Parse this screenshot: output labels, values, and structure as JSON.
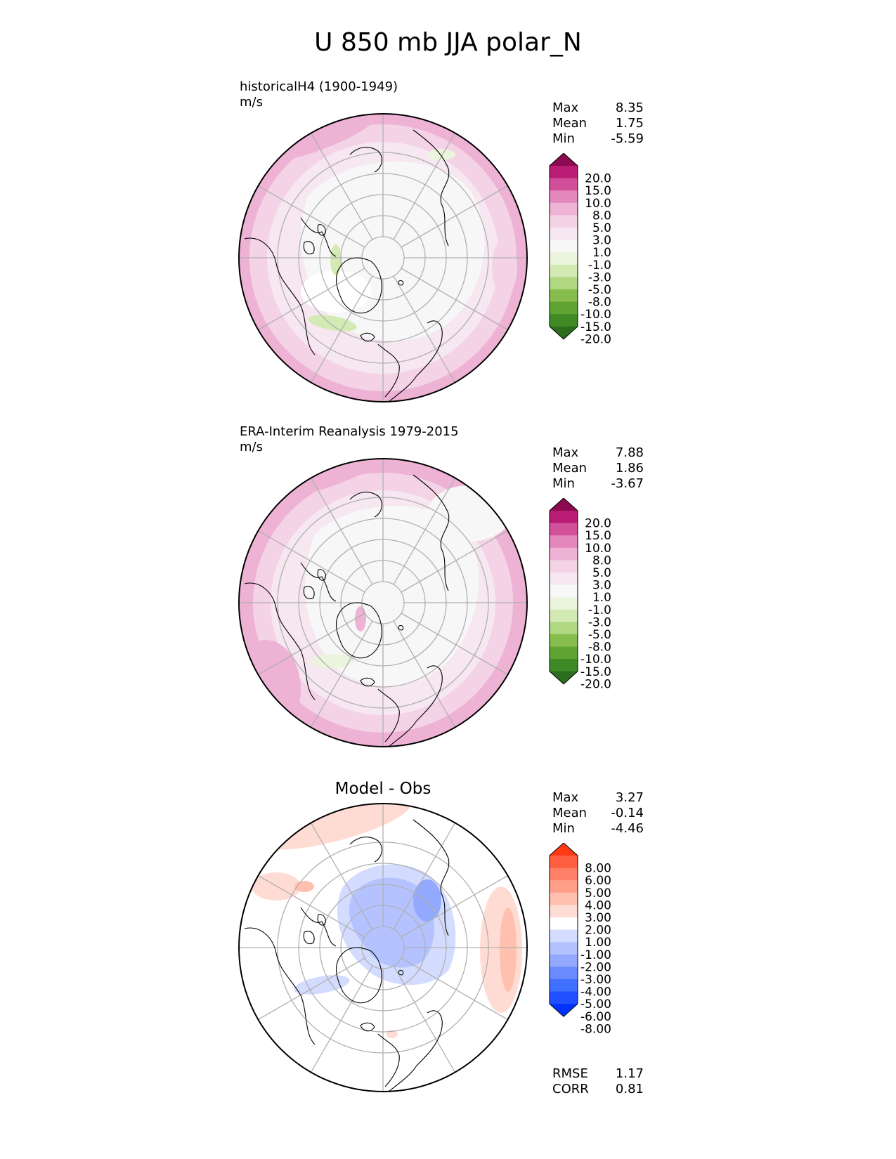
{
  "title": "U 850 mb JJA polar_N",
  "colors": {
    "model_obs_levels": [
      "#2c6e1e",
      "#3f8a25",
      "#5fa332",
      "#86bd4d",
      "#b0d881",
      "#d3eab4",
      "#ebf5dd",
      "#f7f7f7",
      "#f6e7f0",
      "#f4d3e6",
      "#eeb2d5",
      "#e387bd",
      "#d24f9a",
      "#b91c74",
      "#8c0a4f"
    ],
    "diff_levels": [
      "#0033ff",
      "#2050ff",
      "#4070ff",
      "#6a8aff",
      "#93a9ff",
      "#b4c3ff",
      "#d3dcff",
      "#ffffff",
      "#ffdcd3",
      "#ffc0b0",
      "#ff9f8a",
      "#ff8066",
      "#ff5f40",
      "#ff3a14"
    ],
    "coast": "#000000",
    "grid": "#b0b0b0"
  },
  "panels": [
    {
      "name": "model",
      "title": "historicalH4 (1900-1949)",
      "units": "m/s",
      "stats": [
        [
          "Max",
          "8.35"
        ],
        [
          "Mean",
          "1.75"
        ],
        [
          "Min",
          "-5.59"
        ]
      ],
      "colorbar_labels": [
        "20.0",
        "15.0",
        "10.0",
        "8.0",
        "5.0",
        "3.0",
        "1.0",
        "-1.0",
        "-3.0",
        "-5.0",
        "-8.0",
        "-10.0",
        "-15.0",
        "-20.0"
      ]
    },
    {
      "name": "obs",
      "title": "ERA-Interim Reanalysis 1979-2015",
      "units": "m/s",
      "stats": [
        [
          "Max",
          "7.88"
        ],
        [
          "Mean",
          "1.86"
        ],
        [
          "Min",
          "-3.67"
        ]
      ],
      "colorbar_labels": [
        "20.0",
        "15.0",
        "10.0",
        "8.0",
        "5.0",
        "3.0",
        "1.0",
        "-1.0",
        "-3.0",
        "-5.0",
        "-8.0",
        "-10.0",
        "-15.0",
        "-20.0"
      ]
    },
    {
      "name": "diff",
      "title": "Model - Obs",
      "units": "",
      "stats": [
        [
          "Max",
          "3.27"
        ],
        [
          "Mean",
          "-0.14"
        ],
        [
          "Min",
          "-4.46"
        ]
      ],
      "colorbar_labels": [
        "8.00",
        "6.00",
        "5.00",
        "4.00",
        "3.00",
        "2.00",
        "1.00",
        "-1.00",
        "-2.00",
        "-3.00",
        "-4.00",
        "-5.00",
        "-6.00",
        "-8.00"
      ],
      "metrics": [
        [
          "RMSE",
          "1.17"
        ],
        [
          "CORR",
          "0.81"
        ]
      ]
    }
  ],
  "chart_data": [
    {
      "type": "heatmap",
      "projection": "north polar stereographic",
      "title": "historicalH4 (1900-1949)",
      "units": "m/s",
      "colorbar_levels": [
        -20,
        -15,
        -10,
        -8,
        -5,
        -3,
        -1,
        1,
        3,
        5,
        8,
        10,
        15,
        20
      ],
      "colorbar_extend": "both",
      "max": 8.35,
      "mean": 1.75,
      "min": -5.59
    },
    {
      "type": "heatmap",
      "projection": "north polar stereographic",
      "title": "ERA-Interim Reanalysis 1979-2015",
      "units": "m/s",
      "colorbar_levels": [
        -20,
        -15,
        -10,
        -8,
        -5,
        -3,
        -1,
        1,
        3,
        5,
        8,
        10,
        15,
        20
      ],
      "colorbar_extend": "both",
      "max": 7.88,
      "mean": 1.86,
      "min": -3.67
    },
    {
      "type": "heatmap",
      "projection": "north polar stereographic",
      "title": "Model - Obs",
      "colorbar_levels": [
        -8,
        -6,
        -5,
        -4,
        -3,
        -2,
        -1,
        1,
        2,
        3,
        4,
        5,
        6,
        8
      ],
      "colorbar_extend": "both",
      "max": 3.27,
      "mean": -0.14,
      "min": -4.46,
      "rmse": 1.17,
      "corr": 0.81
    }
  ]
}
